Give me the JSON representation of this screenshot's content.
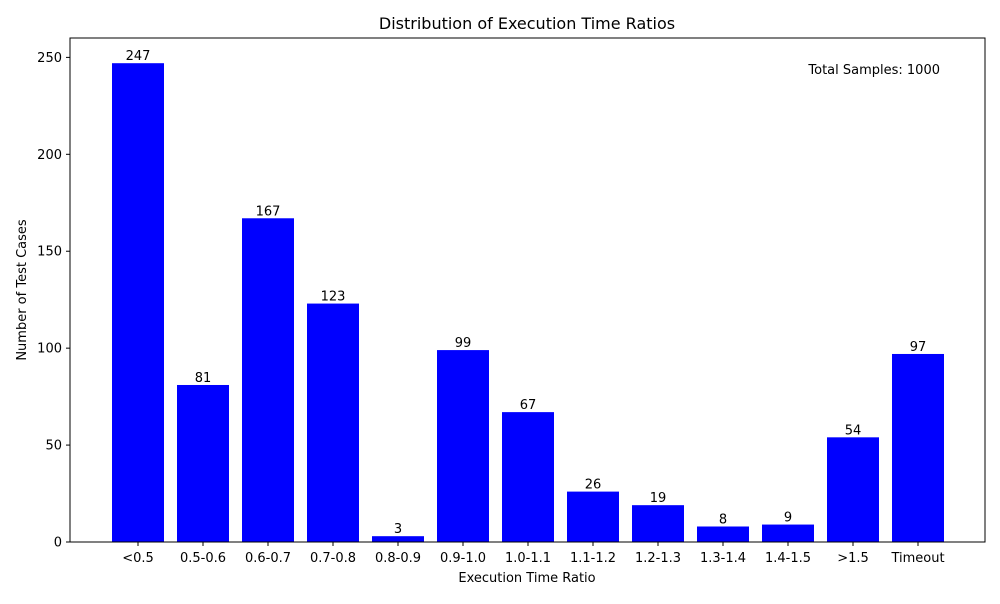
{
  "chart_data": {
    "type": "bar",
    "title": "Distribution of Execution Time Ratios",
    "xlabel": "Execution Time Ratio",
    "ylabel": "Number of Test Cases",
    "categories": [
      "<0.5",
      "0.5-0.6",
      "0.6-0.7",
      "0.7-0.8",
      "0.8-0.9",
      "0.9-1.0",
      "1.0-1.1",
      "1.1-1.2",
      "1.2-1.3",
      "1.3-1.4",
      "1.4-1.5",
      ">1.5",
      "Timeout"
    ],
    "values": [
      247,
      81,
      167,
      123,
      3,
      99,
      67,
      26,
      19,
      8,
      9,
      54,
      97
    ],
    "ylim": [
      0,
      260
    ],
    "yticks": [
      0,
      50,
      100,
      150,
      200,
      250
    ],
    "grid": false,
    "bar_color": "#0000ff",
    "annotation": "Total Samples: 1000"
  }
}
